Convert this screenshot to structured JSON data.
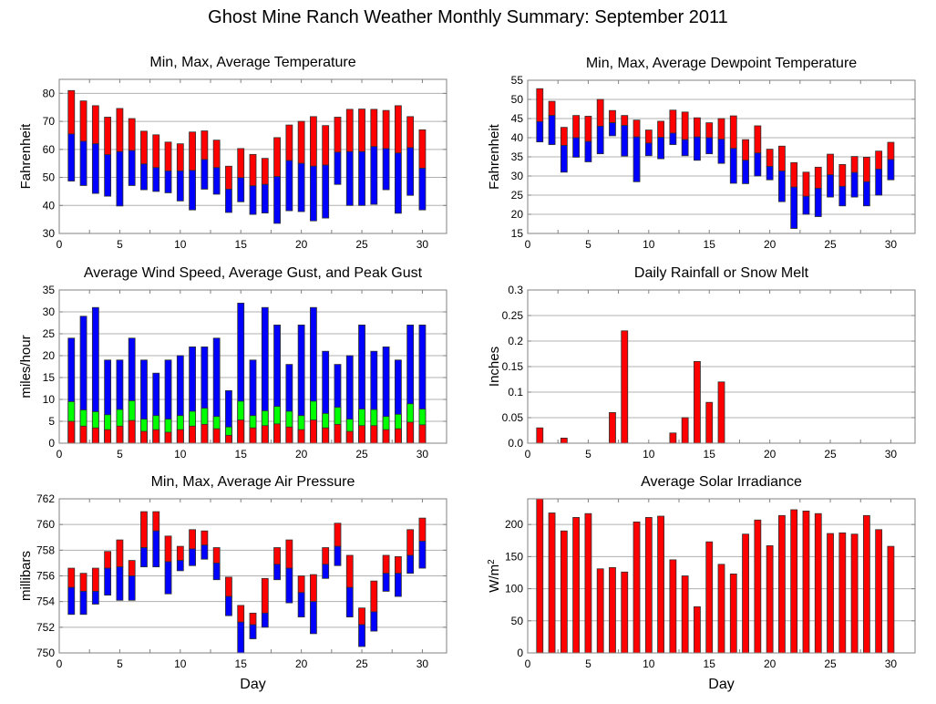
{
  "title": "Ghost Mine Ranch Weather Monthly Summary: September 2011",
  "colors": {
    "red": "#ff0000",
    "blue": "#0000ff",
    "green": "#00ff00",
    "grid": "#b0b0b0",
    "frame": "#808080",
    "bar_stroke": "#303030"
  },
  "chart_data": [
    {
      "id": "temperature",
      "type": "bar",
      "subtype": "floating-range",
      "title": "Min, Max, Average Temperature",
      "xlabel": "",
      "ylabel": "Fahrenheit",
      "xlim": [
        0,
        32
      ],
      "ylim": [
        30,
        85
      ],
      "xticks": [
        0,
        5,
        10,
        15,
        20,
        25,
        30
      ],
      "yticks": [
        30,
        40,
        50,
        60,
        70,
        80
      ],
      "grid": true,
      "x": [
        1,
        2,
        3,
        4,
        5,
        6,
        7,
        8,
        9,
        10,
        11,
        12,
        13,
        14,
        15,
        16,
        17,
        18,
        19,
        20,
        21,
        22,
        23,
        24,
        25,
        26,
        27,
        28,
        29,
        30
      ],
      "series": [
        {
          "name": "Max",
          "color": "red",
          "values": [
            81,
            77.3,
            75.6,
            71.5,
            74.6,
            71,
            66.5,
            65.2,
            62.6,
            62,
            66.2,
            66.6,
            63.3,
            54,
            60.3,
            58.2,
            56.8,
            64.2,
            68.7,
            70,
            71.7,
            68.5,
            71.5,
            74.3,
            74.4,
            74.3,
            73.9,
            75.6,
            71.7,
            67
          ]
        },
        {
          "name": "Average",
          "color": "blue",
          "values": [
            65.5,
            62.9,
            62,
            58.1,
            59.2,
            59.6,
            54.8,
            53.5,
            52.3,
            52.3,
            52.5,
            56.4,
            53.5,
            45.8,
            49.9,
            47,
            47.5,
            50.3,
            56,
            55,
            54,
            54.4,
            59,
            59.2,
            59.2,
            61,
            60.3,
            58.7,
            60.6,
            53.3
          ]
        },
        {
          "name": "Min",
          "color": "blue",
          "values": [
            48.7,
            47.1,
            44.3,
            43.3,
            39.8,
            47.1,
            45.6,
            45,
            44.5,
            41.6,
            38.4,
            45.8,
            44,
            37.5,
            41.3,
            36.8,
            37.3,
            33.6,
            38.1,
            37.8,
            34.5,
            35.5,
            47.5,
            40,
            40,
            40.4,
            45.6,
            37.2,
            43.6,
            38.4
          ]
        }
      ]
    },
    {
      "id": "dewpoint",
      "type": "bar",
      "subtype": "floating-range",
      "title": "Min, Max, Average Dewpoint Temperature",
      "xlabel": "",
      "ylabel": "Fahrenheit",
      "xlim": [
        0,
        32
      ],
      "ylim": [
        15,
        55
      ],
      "xticks": [
        0,
        5,
        10,
        15,
        20,
        25,
        30
      ],
      "yticks": [
        15,
        20,
        25,
        30,
        35,
        40,
        45,
        50,
        55
      ],
      "grid": true,
      "x": [
        1,
        2,
        3,
        4,
        5,
        6,
        7,
        8,
        9,
        10,
        11,
        12,
        13,
        14,
        15,
        16,
        17,
        18,
        19,
        20,
        21,
        22,
        23,
        24,
        25,
        26,
        27,
        28,
        29,
        30
      ],
      "series": [
        {
          "name": "Max",
          "color": "red",
          "values": [
            52.8,
            49.5,
            42.7,
            45.8,
            45.6,
            50,
            47.1,
            45.8,
            44.6,
            42,
            44.3,
            47.2,
            46.7,
            45.2,
            43.9,
            45,
            45.7,
            39.5,
            43.1,
            37,
            37.8,
            33.5,
            31,
            32.3,
            35.7,
            33,
            35.1,
            34.9,
            36.5,
            38.8
          ]
        },
        {
          "name": "Average",
          "color": "blue",
          "values": [
            44.2,
            45.8,
            38,
            40,
            39,
            43,
            43.9,
            43.2,
            40.2,
            38.6,
            40.1,
            41.2,
            39.5,
            40.2,
            40,
            39.6,
            37.2,
            34.1,
            36,
            32.5,
            31.3,
            27.1,
            24.7,
            26.8,
            30.3,
            27.3,
            30.9,
            28.5,
            31.8,
            34.3
          ]
        },
        {
          "name": "Min",
          "color": "blue",
          "values": [
            38.9,
            38.2,
            31,
            34.9,
            33.7,
            35.8,
            40.5,
            35.2,
            28.5,
            35.3,
            34.5,
            38.2,
            35.3,
            34.1,
            35.8,
            33.3,
            28.1,
            28,
            30,
            29,
            23.3,
            16.3,
            20,
            19.4,
            24.5,
            22.2,
            24.5,
            22.2,
            25,
            29
          ]
        }
      ]
    },
    {
      "id": "wind",
      "type": "bar",
      "subtype": "overlaid",
      "title": "Average Wind Speed, Average Gust, and Peak Gust",
      "xlabel": "",
      "ylabel": "miles/hour",
      "xlim": [
        0,
        32
      ],
      "ylim": [
        0,
        35
      ],
      "xticks": [
        0,
        5,
        10,
        15,
        20,
        25,
        30
      ],
      "yticks": [
        0,
        5,
        10,
        15,
        20,
        25,
        30,
        35
      ],
      "grid": true,
      "x": [
        1,
        2,
        3,
        4,
        5,
        6,
        7,
        8,
        9,
        10,
        11,
        12,
        13,
        14,
        15,
        16,
        17,
        18,
        19,
        20,
        21,
        22,
        23,
        24,
        25,
        26,
        27,
        28,
        29,
        30
      ],
      "series": [
        {
          "name": "Peak Gust",
          "color": "blue",
          "values": [
            24,
            29,
            31,
            19,
            19,
            24,
            19,
            16,
            19,
            20,
            22,
            22,
            24,
            12,
            32,
            19,
            31,
            27,
            18,
            27,
            31,
            21,
            18,
            20,
            27,
            21,
            22,
            19,
            27,
            27
          ]
        },
        {
          "name": "Average Gust",
          "color": "green",
          "values": [
            9.5,
            7.6,
            7.2,
            6.5,
            7.7,
            9.7,
            5.5,
            6.3,
            5.5,
            6.3,
            7.3,
            8,
            6.1,
            3.7,
            9.6,
            6.3,
            7.4,
            8.4,
            7.3,
            6.3,
            9.6,
            6.8,
            8.2,
            5.5,
            7.8,
            7.7,
            6.1,
            6.6,
            9,
            7.8
          ]
        },
        {
          "name": "Average Wind Speed",
          "color": "red",
          "values": [
            5,
            3.9,
            3.5,
            3.1,
            3.9,
            5.2,
            2.7,
            3.1,
            2.5,
            3.1,
            3.9,
            4.3,
            3.3,
            1.8,
            5.3,
            3.5,
            4,
            4.4,
            3.7,
            3.1,
            5.3,
            3.5,
            4.3,
            2.7,
            4,
            4,
            3.1,
            3.3,
            4.8,
            4.2
          ]
        }
      ]
    },
    {
      "id": "rainfall",
      "type": "bar",
      "title": "Daily Rainfall or Snow Melt",
      "xlabel": "",
      "ylabel": "Inches",
      "xlim": [
        0,
        32
      ],
      "ylim": [
        0,
        0.3
      ],
      "xticks": [
        0,
        5,
        10,
        15,
        20,
        25,
        30
      ],
      "yticks": [
        0,
        0.05,
        0.1,
        0.15,
        0.2,
        0.25,
        0.3
      ],
      "ytick_labels": [
        "0.0",
        "0.05",
        "0.1",
        "0.15",
        "0.2",
        "0.25",
        "0.3"
      ],
      "grid": true,
      "x": [
        1,
        2,
        3,
        4,
        5,
        6,
        7,
        8,
        9,
        10,
        11,
        12,
        13,
        14,
        15,
        16,
        17,
        18,
        19,
        20,
        21,
        22,
        23,
        24,
        25,
        26,
        27,
        28,
        29,
        30
      ],
      "series": [
        {
          "name": "Rainfall",
          "color": "red",
          "values": [
            0.03,
            0,
            0.01,
            0,
            0,
            0,
            0.06,
            0.22,
            0,
            0,
            0,
            0.02,
            0.05,
            0.16,
            0.08,
            0.12,
            0,
            0,
            0,
            0,
            0,
            0,
            0,
            0,
            0,
            0,
            0,
            0,
            0,
            0
          ]
        }
      ]
    },
    {
      "id": "pressure",
      "type": "bar",
      "subtype": "floating-range",
      "title": "Min, Max, Average Air Pressure",
      "xlabel": "Day",
      "ylabel": "millibars",
      "xlim": [
        0,
        32
      ],
      "ylim": [
        750,
        762
      ],
      "xticks": [
        0,
        5,
        10,
        15,
        20,
        25,
        30
      ],
      "yticks": [
        750,
        752,
        754,
        756,
        758,
        760,
        762
      ],
      "grid": true,
      "x": [
        1,
        2,
        3,
        4,
        5,
        6,
        7,
        8,
        9,
        10,
        11,
        12,
        13,
        14,
        15,
        16,
        17,
        18,
        19,
        20,
        21,
        22,
        23,
        24,
        25,
        26,
        27,
        28,
        29,
        30
      ],
      "series": [
        {
          "name": "Max",
          "color": "red",
          "values": [
            756.6,
            756.2,
            756.6,
            757.9,
            758.8,
            757.2,
            761,
            761,
            759.1,
            758.3,
            759.6,
            759.5,
            758.2,
            755.9,
            753.7,
            753.1,
            755.8,
            758.2,
            758.8,
            756,
            756.1,
            758.2,
            760.1,
            757.6,
            753.5,
            755.6,
            757.6,
            757.5,
            759.6,
            760.5
          ]
        },
        {
          "name": "Average",
          "color": "blue",
          "values": [
            755.1,
            754.8,
            754.8,
            756.6,
            756.7,
            756,
            758.2,
            759.5,
            757.1,
            757.2,
            758.1,
            758.4,
            757,
            754.4,
            752.4,
            752.2,
            753.1,
            756.9,
            756.6,
            754.7,
            754,
            756.9,
            758.3,
            755.1,
            752.2,
            753.2,
            756.2,
            756.2,
            757.6,
            758.7
          ]
        },
        {
          "name": "Min",
          "color": "blue",
          "values": [
            753,
            753,
            753.8,
            754.5,
            754.1,
            754.1,
            756.7,
            756.7,
            754.6,
            756.4,
            756.8,
            757.3,
            755.7,
            752.9,
            750,
            751.1,
            752,
            755.7,
            753.9,
            752.8,
            751.5,
            755.8,
            756.8,
            752.8,
            750.5,
            751.7,
            754.8,
            754.4,
            756.2,
            756.6
          ]
        }
      ]
    },
    {
      "id": "solar",
      "type": "bar",
      "title": "Average Solar Irradiance",
      "xlabel": "Day",
      "ylabel": "W/m",
      "ylabel_superscript": "2",
      "xlim": [
        0,
        32
      ],
      "ylim": [
        0,
        240
      ],
      "xticks": [
        0,
        5,
        10,
        15,
        20,
        25,
        30
      ],
      "yticks": [
        0,
        50,
        100,
        150,
        200
      ],
      "grid": true,
      "x": [
        1,
        2,
        3,
        4,
        5,
        6,
        7,
        8,
        9,
        10,
        11,
        12,
        13,
        14,
        15,
        16,
        17,
        18,
        19,
        20,
        21,
        22,
        23,
        24,
        25,
        26,
        27,
        28,
        29,
        30
      ],
      "series": [
        {
          "name": "Solar Irradiance",
          "color": "red",
          "values": [
            240,
            218,
            190,
            211,
            217,
            131,
            133,
            126,
            204,
            211,
            213,
            145,
            120,
            72,
            173,
            138,
            123,
            185,
            207,
            167,
            214,
            223,
            221,
            217,
            186,
            187,
            185,
            214,
            192,
            166
          ]
        }
      ]
    }
  ]
}
